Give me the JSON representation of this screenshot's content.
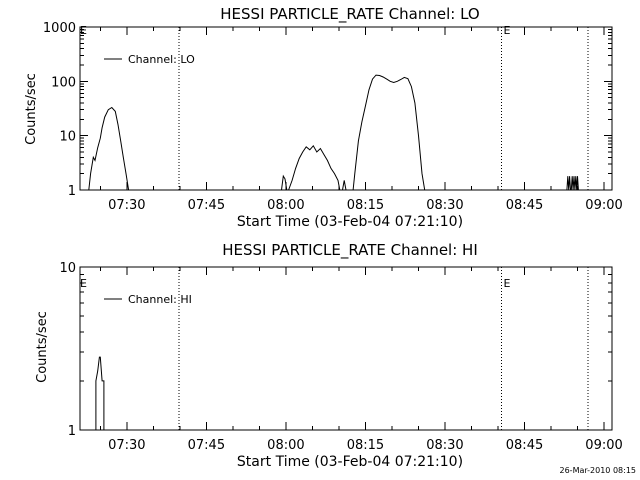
{
  "chart_data": [
    {
      "type": "line",
      "title": "HESSI PARTICLE_RATE Channel: LO",
      "xlabel": "Start Time (03-Feb-04 07:21:10)",
      "ylabel": "Counts/sec",
      "y_scale": "log",
      "ylim": [
        1,
        1000
      ],
      "y_ticks": [
        1,
        10,
        100,
        1000
      ],
      "y_tick_labels": [
        "1",
        "10",
        "100",
        "1000"
      ],
      "xlim": [
        "07:21:10",
        "09:01:30"
      ],
      "x_ticks": [
        "07:30",
        "07:45",
        "08:00",
        "08:15",
        "08:30",
        "08:45",
        "09:00"
      ],
      "legend": {
        "label": "Channel: LO",
        "placement": "top-left"
      },
      "event_markers": [
        {
          "time": "07:39:50",
          "label": ""
        },
        {
          "time": "08:40:40",
          "label": "E"
        },
        {
          "time": "08:57:00",
          "label": ""
        }
      ],
      "start_marker_label": "E",
      "series": [
        {
          "name": "Channel: LO",
          "x": [
            "07:22:50",
            "07:23:10",
            "07:23:40",
            "07:24:00",
            "07:24:30",
            "07:25:00",
            "07:25:20",
            "07:25:50",
            "07:26:30",
            "07:27:10",
            "07:27:50",
            "07:28:20",
            "07:28:50",
            "07:29:20",
            "07:29:50",
            "07:30:20"
          ],
          "y": [
            1,
            2,
            4,
            3.5,
            6,
            9,
            14,
            22,
            30,
            33,
            28,
            16,
            8,
            4,
            2,
            1
          ],
          "segments": [
            {
              "x": [
                "07:59:10",
                "07:59:30",
                "07:59:50",
                "08:00:10"
              ],
              "y": [
                1,
                1.8,
                1.6,
                1
              ]
            },
            {
              "x": [
                "08:00:30",
                "08:01:10",
                "08:01:50",
                "08:02:30",
                "08:03:10",
                "08:03:50",
                "08:04:30",
                "08:05:10",
                "08:05:50",
                "08:06:30",
                "08:07:10",
                "08:07:50",
                "08:08:30",
                "08:09:10",
                "08:09:50",
                "08:10:10"
              ],
              "y": [
                1,
                1.5,
                2.5,
                3.8,
                5,
                6.2,
                5.5,
                6.5,
                5,
                5.8,
                4.5,
                3.5,
                2.5,
                2,
                1.5,
                1
              ]
            },
            {
              "x": [
                "08:10:40",
                "08:11:00",
                "08:11:20"
              ],
              "y": [
                1,
                1.5,
                1
              ]
            },
            {
              "x": [
                "08:12:40",
                "08:13:00",
                "08:13:40",
                "08:14:20",
                "08:15:00",
                "08:15:40",
                "08:16:20",
                "08:17:00",
                "08:17:40",
                "08:18:20",
                "08:19:00",
                "08:19:40",
                "08:20:20",
                "08:21:00",
                "08:21:40",
                "08:22:20",
                "08:23:00",
                "08:23:40",
                "08:24:20",
                "08:25:00",
                "08:25:40",
                "08:26:10"
              ],
              "y": [
                1,
                2,
                8,
                18,
                35,
                70,
                110,
                130,
                128,
                120,
                110,
                100,
                95,
                100,
                108,
                118,
                112,
                80,
                40,
                10,
                2,
                1
              ]
            },
            {
              "x": [
                "08:53:00",
                "08:53:10",
                "08:53:20",
                "08:53:30",
                "08:53:40",
                "08:53:50",
                "08:54:00",
                "08:54:10",
                "08:54:20",
                "08:54:30",
                "08:54:40",
                "08:54:50",
                "08:55:00",
                "08:55:10",
                "08:55:20"
              ],
              "y": [
                1,
                1.8,
                1,
                1.8,
                1,
                1,
                1.8,
                1,
                1.8,
                1,
                1.8,
                1,
                1.8,
                1,
                1
              ]
            }
          ]
        }
      ]
    },
    {
      "type": "line",
      "title": "HESSI PARTICLE_RATE Channel: HI",
      "xlabel": "Start Time (03-Feb-04 07:21:10)",
      "ylabel": "Counts/sec",
      "y_scale": "log",
      "ylim": [
        1,
        10
      ],
      "y_ticks": [
        1,
        10
      ],
      "y_tick_labels": [
        "1",
        "10"
      ],
      "xlim": [
        "07:21:10",
        "09:01:30"
      ],
      "x_ticks": [
        "07:30",
        "07:45",
        "08:00",
        "08:15",
        "08:30",
        "08:45",
        "09:00"
      ],
      "legend": {
        "label": "Channel: HI",
        "placement": "top-left"
      },
      "event_markers": [
        {
          "time": "07:39:50",
          "label": ""
        },
        {
          "time": "08:40:40",
          "label": "E"
        },
        {
          "time": "08:57:00",
          "label": ""
        }
      ],
      "start_marker_label": "E",
      "series": [
        {
          "name": "Channel: HI",
          "x": [
            "07:24:10",
            "07:24:10",
            "07:24:30",
            "07:24:50",
            "07:25:00",
            "07:25:20",
            "07:25:40",
            "07:25:40"
          ],
          "y": [
            1,
            2,
            2.3,
            2.8,
            2.8,
            2.0,
            2.0,
            1
          ]
        }
      ]
    }
  ],
  "footer": {
    "timestamp": "26-Mar-2010 08:15"
  }
}
